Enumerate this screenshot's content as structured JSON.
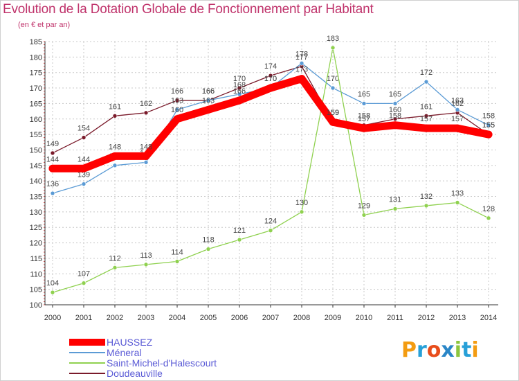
{
  "header": {
    "title": "Evolution de la Dotation Globale de Fonctionnement par Habitant",
    "subtitle": "(en € et par an)"
  },
  "logo": {
    "text": "Proxiti",
    "letters": [
      "P",
      "r",
      "o",
      "x",
      "i",
      "t",
      "i"
    ],
    "colors": [
      "#f39c12",
      "#27a0d8",
      "#e84d1c",
      "#2a86c7",
      "#8cc63f",
      "#27a0d8",
      "#f39c12"
    ]
  },
  "chart_data": {
    "type": "line",
    "title": "Evolution de la Dotation Globale de Fonctionnement par Habitant",
    "subtitle": "(en € et par an)",
    "xlabel": "",
    "ylabel": "",
    "categories": [
      "2000",
      "2001",
      "2002",
      "2003",
      "2004",
      "2005",
      "2006",
      "2007",
      "2008",
      "2009",
      "2010",
      "2011",
      "2012",
      "2013",
      "2014"
    ],
    "ylim": [
      100,
      185
    ],
    "yticks": [
      100,
      105,
      110,
      115,
      120,
      125,
      130,
      135,
      140,
      145,
      150,
      155,
      160,
      165,
      170,
      175,
      180,
      185
    ],
    "grid": true,
    "legend_position": "bottom-left",
    "series": [
      {
        "name": "Doudeauville",
        "color": "#7a1a2a",
        "width": "thin",
        "values": [
          149,
          154,
          161,
          162,
          166,
          166,
          170,
          174,
          177,
          159,
          158,
          160,
          161,
          162,
          155
        ],
        "labels": [
          "149",
          "154",
          "161",
          "162",
          "166",
          "166",
          "170",
          "174",
          "177",
          "159",
          "158",
          "160",
          "161",
          "162",
          "155"
        ]
      },
      {
        "name": "Méneral",
        "color": "#5b9bd5",
        "width": "thin",
        "values": [
          136,
          139,
          145,
          146,
          163,
          166,
          168,
          170,
          178,
          170,
          165,
          165,
          172,
          163,
          158
        ],
        "labels": [
          "136",
          "139",
          "145",
          "146",
          "163",
          "166",
          "168",
          "170",
          "178",
          "170",
          "165",
          "165",
          "172",
          "163",
          "158"
        ]
      },
      {
        "name": "Saint-Michel-d'Halescourt",
        "color": "#8fd14f",
        "width": "thin",
        "values": [
          104,
          107,
          112,
          113,
          114,
          118,
          121,
          124,
          130,
          183,
          129,
          131,
          132,
          133,
          128
        ],
        "labels": [
          "104",
          "107",
          "112",
          "113",
          "114",
          "118",
          "121",
          "124",
          "130",
          "183",
          "129",
          "131",
          "132",
          "133",
          "128"
        ]
      },
      {
        "name": "HAUSSEZ",
        "color": "#ff0000",
        "width": "thick",
        "values": [
          144,
          144,
          148,
          148,
          160,
          163,
          166,
          170,
          173,
          159,
          157,
          158,
          157,
          157,
          155
        ],
        "labels": [
          "144",
          "144",
          "148",
          "148",
          "160",
          "163",
          "166",
          "170",
          "173",
          "159",
          "157",
          "158",
          "157",
          "157",
          "155"
        ]
      }
    ],
    "legend": [
      "HAUSSEZ",
      "Méneral",
      "Saint-Michel-d'Halescourt",
      "Doudeauville"
    ]
  }
}
